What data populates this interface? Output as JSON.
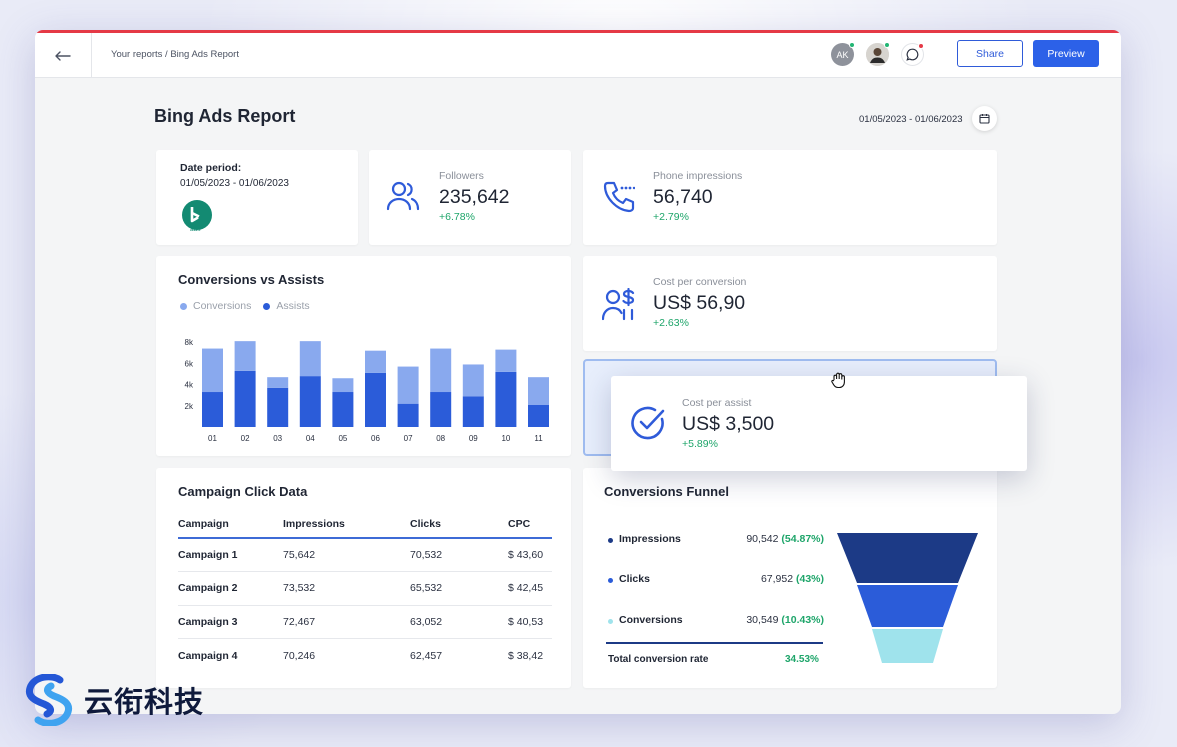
{
  "topbar": {
    "breadcrumb": "Your reports / Bing Ads Report",
    "avatar_1_initials": "AK",
    "share_label": "Share",
    "preview_label": "Preview"
  },
  "report": {
    "title": "Bing Ads Report",
    "date_range": "01/05/2023 - 01/06/2023"
  },
  "date_card": {
    "label": "Date period:",
    "value": "01/05/2023 - 01/06/2023",
    "logo_text": "ads"
  },
  "kpis": {
    "followers": {
      "label": "Followers",
      "value": "235,642",
      "delta": "+6.78%"
    },
    "phone": {
      "label": "Phone impressions",
      "value": "56,740",
      "delta": "+2.79%"
    },
    "cost_conv": {
      "label": "Cost per conversion",
      "value": "US$ 56,90",
      "delta": "+2.63%"
    },
    "cost_assist": {
      "label": "Cost per assist",
      "value": "US$ 3,500",
      "delta": "+5.89%"
    }
  },
  "conv_chart": {
    "title": "Conversions vs Assists",
    "legend": [
      "Conversions",
      "Assists"
    ]
  },
  "chart_data": {
    "type": "bar",
    "title": "Conversions vs Assists",
    "stacked": true,
    "categories": [
      "01",
      "02",
      "03",
      "04",
      "05",
      "06",
      "07",
      "08",
      "09",
      "10",
      "11"
    ],
    "series": [
      {
        "name": "Assists",
        "values": [
          3.3,
          5.3,
          3.7,
          4.8,
          3.3,
          5.1,
          2.2,
          3.3,
          2.9,
          5.2,
          2.1
        ]
      },
      {
        "name": "Conversions",
        "values": [
          4.1,
          2.8,
          1.0,
          3.3,
          1.3,
          2.1,
          3.5,
          4.1,
          3.0,
          2.1,
          2.6
        ]
      }
    ],
    "ylim": [
      0,
      10
    ],
    "yticks": [
      "2k",
      "4k",
      "6k",
      "8k",
      "10k"
    ],
    "colors": {
      "Conversions": "#89a9ee",
      "Assists": "#2b5cd9"
    }
  },
  "campaign_table": {
    "title": "Campaign Click Data",
    "headers": [
      "Campaign",
      "Impressions",
      "Clicks",
      "CPC"
    ],
    "rows": [
      [
        "Campaign 1",
        "75,642",
        "70,532",
        "$ 43,60"
      ],
      [
        "Campaign 2",
        "73,532",
        "65,532",
        "$ 42,45"
      ],
      [
        "Campaign 3",
        "72,467",
        "63,052",
        "$ 40,53"
      ],
      [
        "Campaign 4",
        "70,246",
        "62,457",
        "$ 38,42"
      ]
    ]
  },
  "funnel": {
    "title": "Conversions Funnel",
    "items": [
      {
        "name": "Impressions",
        "value": "90,542",
        "pct": "(54.87%)",
        "color": "#1c3a86"
      },
      {
        "name": "Clicks",
        "value": "67,952",
        "pct": "(43%)",
        "color": "#2b5cd9"
      },
      {
        "name": "Conversions",
        "value": "30,549",
        "pct": "(10.43%)",
        "color": "#9fe3ec"
      }
    ],
    "total_label": "Total conversion rate",
    "total_value": "34.53%"
  },
  "brand": {
    "name": "云衔科技"
  },
  "colors": {
    "accent": "#2c61e8",
    "positive": "#1ea56a",
    "topline": "#e53946"
  }
}
